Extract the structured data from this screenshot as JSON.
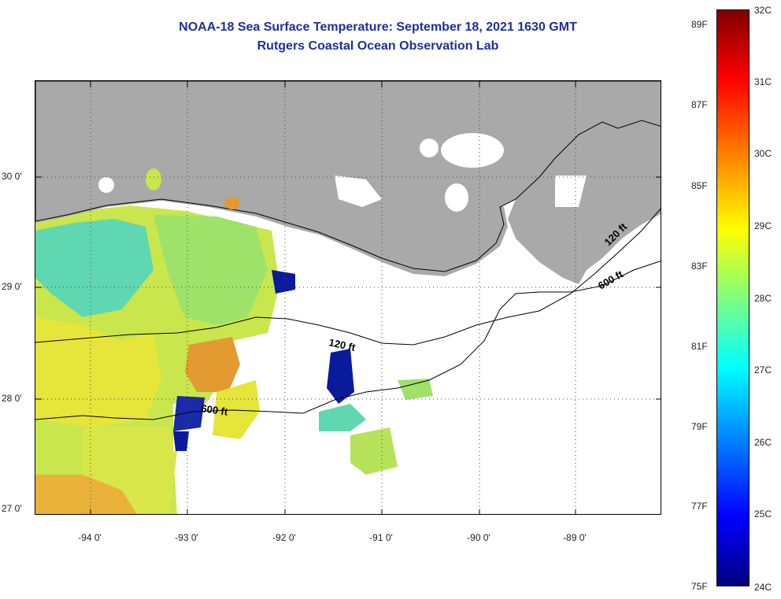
{
  "header": {
    "title": "NOAA-18 Sea Surface Temperature:  September 18, 2021 1630 GMT",
    "subtitle": "Rutgers Coastal Ocean Observation Lab"
  },
  "axes": {
    "latitudes": [
      "30 0'",
      "29 0'",
      "28 0'",
      "27 0'"
    ],
    "longitudes": [
      "-94 0'",
      "-93 0'",
      "-92 0'",
      "-91 0'",
      "-90 0'",
      "-89 0'"
    ]
  },
  "contours": {
    "labels": [
      "120 ft",
      "600 ft",
      "120 ft",
      "600 ft"
    ]
  },
  "colorbar": {
    "fahrenheit": [
      "89F",
      "87F",
      "85F",
      "83F",
      "81F",
      "79F",
      "77F",
      "75F"
    ],
    "celsius": [
      "32C",
      "31C",
      "30C",
      "29C",
      "28C",
      "27C",
      "26C",
      "25C",
      "24C"
    ]
  },
  "colors": {
    "land": "#a9a9a9",
    "cloud": "#ffffff",
    "title": "#1f2f9e",
    "sst_warm": "#e8d72a",
    "sst_mid": "#9fe26a",
    "sst_cool": "#2ad9d0",
    "sst_cold": "#0a1a9c"
  }
}
